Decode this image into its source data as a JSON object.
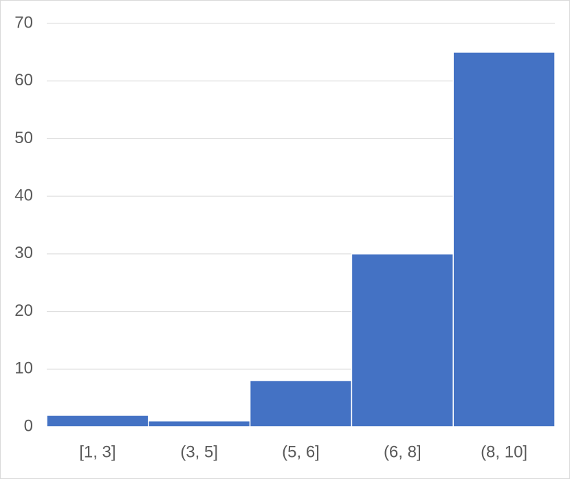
{
  "chart_data": {
    "type": "bar",
    "categories": [
      "[1, 3]",
      "(3, 5]",
      "(5, 6]",
      "(6, 8]",
      "(8, 10]"
    ],
    "values": [
      2,
      1,
      8,
      30,
      65
    ],
    "color": "#4472c4",
    "ylim": [
      0,
      70
    ],
    "yticks": [
      0,
      10,
      20,
      30,
      40,
      50,
      60,
      70
    ],
    "grid": true
  }
}
